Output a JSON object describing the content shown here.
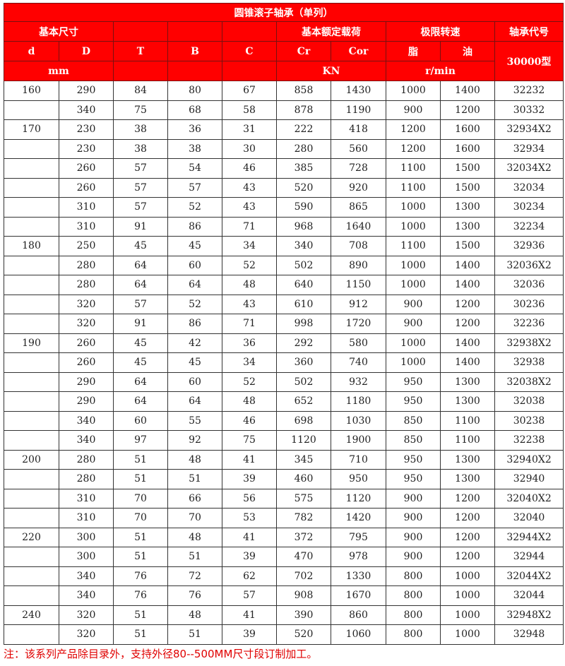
{
  "title": "圆锥滚子轴承（单列）",
  "header": {
    "basic_size": "基本尺寸",
    "basic_load": "基本额定载荷",
    "limit_speed": "极限转速",
    "bearing_code": "轴承代号",
    "cols": [
      "d",
      "D",
      "T",
      "B",
      "C",
      "Cr",
      "Cor",
      "脂",
      "油"
    ],
    "type": "30000型",
    "unit_mm": "mm",
    "unit_kn": "KN",
    "unit_speed": "r/min"
  },
  "rows": [
    [
      "160",
      "290",
      "84",
      "80",
      "67",
      "858",
      "1430",
      "1000",
      "1400",
      "32232"
    ],
    [
      "",
      "340",
      "75",
      "68",
      "58",
      "878",
      "1190",
      "900",
      "1200",
      "30332"
    ],
    [
      "170",
      "230",
      "38",
      "36",
      "31",
      "222",
      "418",
      "1200",
      "1600",
      "32934X2"
    ],
    [
      "",
      "230",
      "38",
      "38",
      "30",
      "280",
      "560",
      "1200",
      "1600",
      "32934"
    ],
    [
      "",
      "260",
      "57",
      "54",
      "46",
      "385",
      "728",
      "1100",
      "1500",
      "32034X2"
    ],
    [
      "",
      "260",
      "57",
      "57",
      "43",
      "520",
      "920",
      "1100",
      "1500",
      "32034"
    ],
    [
      "",
      "310",
      "57",
      "52",
      "43",
      "590",
      "865",
      "1000",
      "1300",
      "30234"
    ],
    [
      "",
      "310",
      "91",
      "86",
      "71",
      "968",
      "1640",
      "1000",
      "1300",
      "32234"
    ],
    [
      "180",
      "250",
      "45",
      "45",
      "34",
      "340",
      "708",
      "1100",
      "1500",
      "32936"
    ],
    [
      "",
      "280",
      "64",
      "60",
      "52",
      "502",
      "890",
      "1000",
      "1400",
      "32036X2"
    ],
    [
      "",
      "280",
      "64",
      "64",
      "48",
      "640",
      "1150",
      "1000",
      "1400",
      "32036"
    ],
    [
      "",
      "320",
      "57",
      "52",
      "43",
      "610",
      "912",
      "900",
      "1200",
      "30236"
    ],
    [
      "",
      "320",
      "91",
      "86",
      "71",
      "998",
      "1720",
      "900",
      "1200",
      "32236"
    ],
    [
      "190",
      "260",
      "45",
      "42",
      "36",
      "292",
      "580",
      "1000",
      "1400",
      "32938X2"
    ],
    [
      "",
      "260",
      "45",
      "45",
      "34",
      "360",
      "740",
      "1000",
      "1400",
      "32938"
    ],
    [
      "",
      "290",
      "64",
      "60",
      "52",
      "502",
      "932",
      "950",
      "1300",
      "32038X2"
    ],
    [
      "",
      "290",
      "64",
      "64",
      "48",
      "652",
      "1180",
      "950",
      "1300",
      "32038"
    ],
    [
      "",
      "340",
      "60",
      "55",
      "46",
      "698",
      "1030",
      "850",
      "1100",
      "30238"
    ],
    [
      "",
      "340",
      "97",
      "92",
      "75",
      "1120",
      "1900",
      "850",
      "1100",
      "32238"
    ],
    [
      "200",
      "280",
      "51",
      "48",
      "41",
      "345",
      "710",
      "950",
      "1300",
      "32940X2"
    ],
    [
      "",
      "280",
      "51",
      "51",
      "39",
      "460",
      "950",
      "950",
      "1300",
      "32940"
    ],
    [
      "",
      "310",
      "70",
      "66",
      "56",
      "575",
      "1120",
      "900",
      "1200",
      "32040X2"
    ],
    [
      "",
      "310",
      "70",
      "70",
      "53",
      "782",
      "1420",
      "900",
      "1200",
      "32040"
    ],
    [
      "220",
      "300",
      "51",
      "48",
      "41",
      "372",
      "795",
      "900",
      "1200",
      "32944X2"
    ],
    [
      "",
      "300",
      "51",
      "51",
      "39",
      "470",
      "978",
      "900",
      "1200",
      "32944"
    ],
    [
      "",
      "340",
      "76",
      "72",
      "62",
      "702",
      "1330",
      "800",
      "1000",
      "32044X2"
    ],
    [
      "",
      "340",
      "76",
      "76",
      "57",
      "908",
      "1670",
      "800",
      "1000",
      "32044"
    ],
    [
      "240",
      "320",
      "51",
      "48",
      "41",
      "390",
      "860",
      "800",
      "1000",
      "32948X2"
    ],
    [
      "",
      "320",
      "51",
      "51",
      "39",
      "520",
      "1060",
      "800",
      "1000",
      "32948"
    ]
  ],
  "note": "注：该系列产品除目录外，支持外径80--500MM尺寸段订制加工。"
}
